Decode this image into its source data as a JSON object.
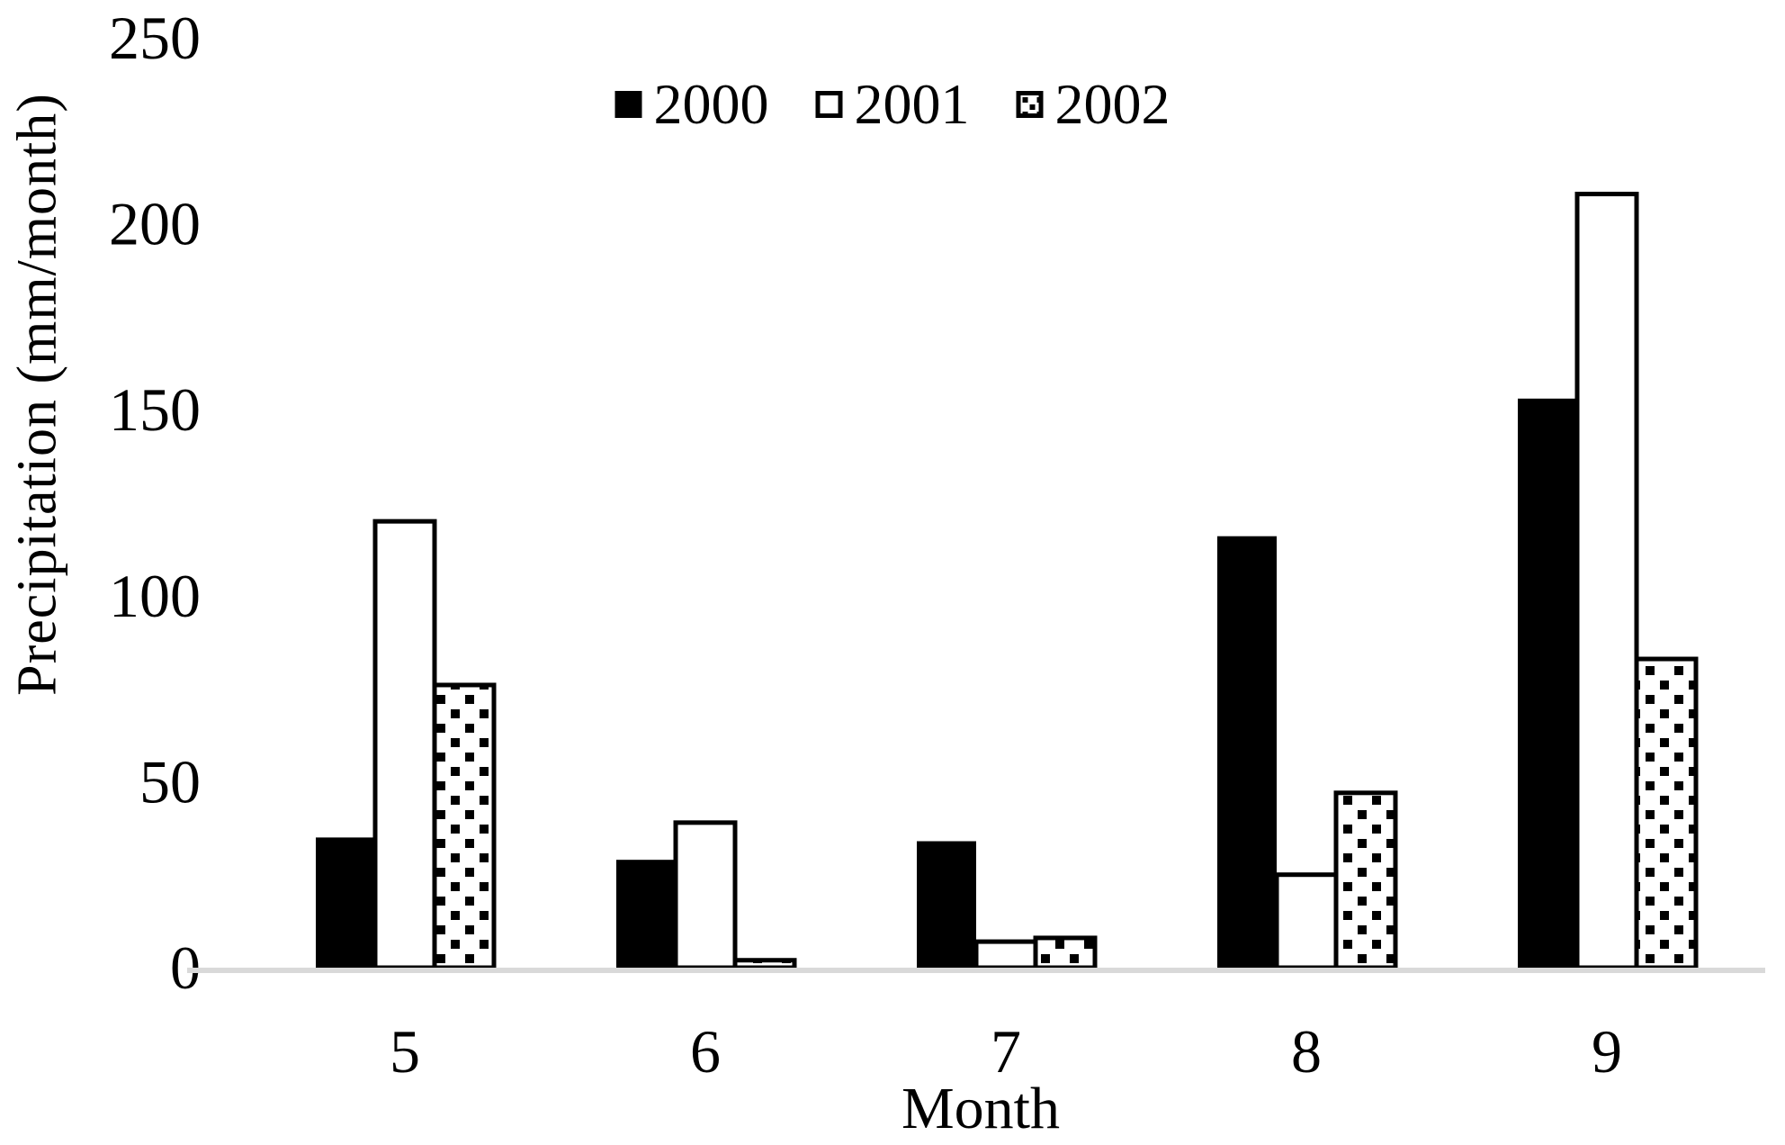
{
  "chart_data": {
    "type": "bar",
    "categories": [
      "5",
      "6",
      "7",
      "8",
      "9"
    ],
    "series": [
      {
        "name": "2000",
        "fill": "solid-black",
        "values": [
          35,
          29,
          34,
          116,
          153
        ]
      },
      {
        "name": "2001",
        "fill": "white-outlined",
        "values": [
          120,
          39,
          7,
          25,
          208
        ]
      },
      {
        "name": "2002",
        "fill": "dotted",
        "values": [
          76,
          2,
          8,
          47,
          83
        ]
      }
    ],
    "xlabel": "Month",
    "ylabel": "Precipitation (mm/month)",
    "ylim": [
      0,
      250
    ],
    "yticks": [
      0,
      50,
      100,
      150,
      200,
      250
    ],
    "legend_position": "top-center",
    "grid": false,
    "colors": {
      "bar_fill": "#000000",
      "bar_outline": "#000000",
      "axis_line": "#d9d9d9",
      "text": "#000000",
      "background": "#ffffff"
    }
  }
}
